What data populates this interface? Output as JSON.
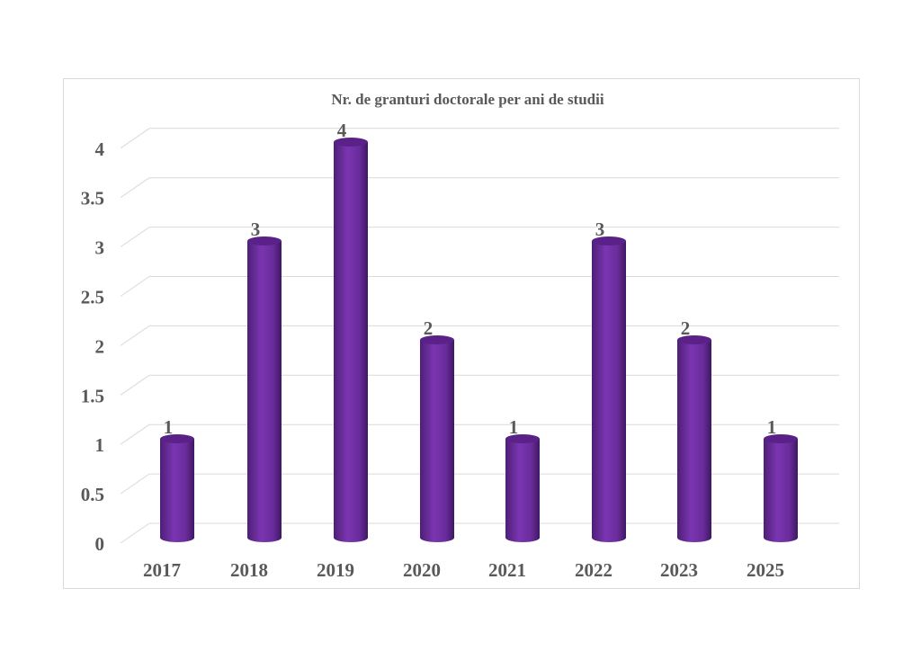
{
  "chart_data": {
    "type": "bar",
    "title": "Nr. de granturi doctorale per ani de studii",
    "categories": [
      "2017",
      "2018",
      "2019",
      "2020",
      "2021",
      "2022",
      "2023",
      "2025"
    ],
    "values": [
      1,
      3,
      4,
      2,
      1,
      3,
      2,
      1
    ],
    "xlabel": "",
    "ylabel": "",
    "ylim": [
      0,
      4
    ],
    "yticks": [
      "0",
      "0.5",
      "1",
      "1.5",
      "2",
      "2.5",
      "3",
      "3.5",
      "4"
    ],
    "grid": true,
    "legend": "none",
    "bar_color": "#7030a0"
  }
}
